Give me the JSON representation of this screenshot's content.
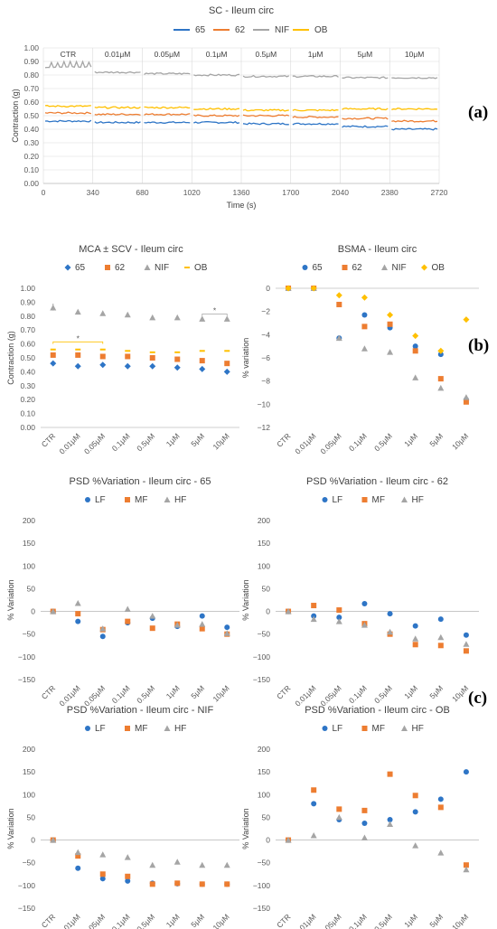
{
  "panels": [
    "(a)",
    "(b)",
    "(c)"
  ],
  "colors": {
    "65": "#2e75c6",
    "62": "#ed7d31",
    "NIF": "#a5a5a5",
    "OB": "#ffc000",
    "LF": "#2e75c6",
    "MF": "#ed7d31",
    "HF": "#a5a5a5"
  },
  "chart_data": [
    {
      "id": "sc",
      "type": "line",
      "title": "SC - Ileum circ",
      "xlabel": "Time (s)",
      "ylabel": "Contraction (g)",
      "xlim": [
        0,
        2720
      ],
      "ylim": [
        0,
        1.0
      ],
      "xticks": [
        0,
        340,
        680,
        1020,
        1360,
        1700,
        2040,
        2380,
        2720
      ],
      "yticks": [
        "0.00",
        "0.10",
        "0.20",
        "0.30",
        "0.40",
        "0.50",
        "0.60",
        "0.70",
        "0.80",
        "0.90",
        "1.00"
      ],
      "segments": [
        "CTR",
        "0.01μM",
        "0.05μM",
        "0.1μM",
        "0.5μM",
        "1μM",
        "5μM",
        "10μM"
      ],
      "series": [
        {
          "name": "65",
          "values": [
            0.46,
            0.45,
            0.45,
            0.45,
            0.44,
            0.44,
            0.42,
            0.4
          ]
        },
        {
          "name": "62",
          "values": [
            0.52,
            0.51,
            0.51,
            0.5,
            0.5,
            0.49,
            0.48,
            0.46
          ]
        },
        {
          "name": "NIF",
          "values": [
            0.86,
            0.82,
            0.81,
            0.8,
            0.79,
            0.79,
            0.78,
            0.78
          ]
        },
        {
          "name": "OB",
          "values": [
            0.57,
            0.56,
            0.56,
            0.55,
            0.54,
            0.54,
            0.55,
            0.55
          ]
        }
      ]
    },
    {
      "id": "mca",
      "type": "scatter",
      "title": "MCA ± SCV - Ileum circ",
      "xlabel": "",
      "ylabel": "Contraction (g)",
      "ylim": [
        0,
        1.0
      ],
      "yticks": [
        "0.00",
        "0.10",
        "0.20",
        "0.30",
        "0.40",
        "0.50",
        "0.60",
        "0.70",
        "0.80",
        "0.90",
        "1.00"
      ],
      "categories": [
        "CTR",
        "0.01μM",
        "0.05μM",
        "0.1μM",
        "0.5μM",
        "1μM",
        "5μM",
        "10μM"
      ],
      "series": [
        {
          "name": "65",
          "values": [
            0.46,
            0.44,
            0.45,
            0.44,
            0.44,
            0.43,
            0.42,
            0.4
          ]
        },
        {
          "name": "62",
          "values": [
            0.52,
            0.52,
            0.51,
            0.51,
            0.5,
            0.49,
            0.48,
            0.46
          ]
        },
        {
          "name": "NIF",
          "values": [
            0.86,
            0.83,
            0.82,
            0.81,
            0.79,
            0.79,
            0.78,
            0.78
          ]
        },
        {
          "name": "OB",
          "values": [
            0.56,
            0.56,
            0.56,
            0.55,
            0.54,
            0.54,
            0.55,
            0.55
          ]
        }
      ],
      "annotations": [
        "*",
        "*"
      ]
    },
    {
      "id": "bsma",
      "type": "scatter",
      "title": "BSMA - Ileum circ",
      "xlabel": "",
      "ylabel": "% variation",
      "ylim": [
        -12,
        0
      ],
      "yticks": [
        "0",
        "−2",
        "−4",
        "−6",
        "−8",
        "−10",
        "−12"
      ],
      "categories": [
        "CTR",
        "0.01μM",
        "0.05μM",
        "0.1μM",
        "0.5μM",
        "1μM",
        "5μM",
        "10μM"
      ],
      "series": [
        {
          "name": "65",
          "values": [
            0,
            0,
            -4.3,
            -2.3,
            -3.4,
            -5.0,
            -5.7,
            -9.6
          ]
        },
        {
          "name": "62",
          "values": [
            0,
            0,
            -1.4,
            -3.3,
            -3.1,
            -5.4,
            -7.8,
            -9.8
          ]
        },
        {
          "name": "NIF",
          "values": [
            0,
            0,
            -4.3,
            -5.2,
            -5.5,
            -7.7,
            -8.6,
            -9.4
          ]
        },
        {
          "name": "OB",
          "values": [
            0,
            0,
            -0.6,
            -0.8,
            -2.3,
            -4.1,
            -5.4,
            -2.7
          ]
        }
      ]
    },
    {
      "id": "psd65",
      "type": "scatter",
      "title": "PSD %Variation - Ileum circ -   65",
      "xlabel": "",
      "ylabel": "% Variation",
      "ylim": [
        -150,
        200
      ],
      "yticks": [
        "200",
        "150",
        "100",
        "50",
        "0",
        "−50",
        "−100",
        "−150"
      ],
      "categories": [
        "CTR",
        "0.01μM",
        "0.05μM",
        "0.1μM",
        "0.5μM",
        "1μM",
        "5μM",
        "10μM"
      ],
      "series": [
        {
          "name": "LF",
          "values": [
            0,
            -22,
            -55,
            -25,
            -15,
            -33,
            -10,
            -35
          ]
        },
        {
          "name": "MF",
          "values": [
            0,
            -5,
            -40,
            -22,
            -37,
            -28,
            -38,
            -50
          ]
        },
        {
          "name": "HF",
          "values": [
            0,
            18,
            -38,
            5,
            -10,
            -30,
            -28,
            -48
          ]
        }
      ]
    },
    {
      "id": "psd62",
      "type": "scatter",
      "title": "PSD %Variation - Ileum circ -   62",
      "xlabel": "",
      "ylabel": "% Variation",
      "ylim": [
        -150,
        200
      ],
      "yticks": [
        "200",
        "150",
        "100",
        "50",
        "0",
        "−50",
        "−100",
        "−150"
      ],
      "categories": [
        "CTR",
        "0.01μM",
        "0.05μM",
        "0.1μM",
        "0.5μM",
        "1μM",
        "5μM",
        "10μM"
      ],
      "series": [
        {
          "name": "LF",
          "values": [
            0,
            -10,
            -13,
            17,
            -5,
            -32,
            -17,
            -52
          ]
        },
        {
          "name": "MF",
          "values": [
            0,
            13,
            3,
            -27,
            -50,
            -73,
            -75,
            -87
          ]
        },
        {
          "name": "HF",
          "values": [
            0,
            -17,
            -22,
            -30,
            -45,
            -60,
            -57,
            -72
          ]
        }
      ]
    },
    {
      "id": "psdnif",
      "type": "scatter",
      "title": "PSD %Variation - Ileum circ - NIF",
      "xlabel": "",
      "ylabel": "% Variation",
      "ylim": [
        -150,
        200
      ],
      "yticks": [
        "200",
        "150",
        "100",
        "50",
        "0",
        "−50",
        "−100",
        "−150"
      ],
      "categories": [
        "CTR",
        "0.01μM",
        "0.05μM",
        "0.1μM",
        "0.5μM",
        "1μM",
        "5μM",
        "10μM"
      ],
      "series": [
        {
          "name": "LF",
          "values": [
            0,
            -62,
            -85,
            -90,
            -95,
            -96,
            -97,
            -97
          ]
        },
        {
          "name": "MF",
          "values": [
            0,
            -35,
            -75,
            -80,
            -97,
            -95,
            -97,
            -97
          ]
        },
        {
          "name": "HF",
          "values": [
            0,
            -27,
            -32,
            -38,
            -55,
            -48,
            -55,
            -55
          ]
        }
      ]
    },
    {
      "id": "psdob",
      "type": "scatter",
      "title": "PSD %Variation - Ileum circ - OB",
      "xlabel": "",
      "ylabel": "% Variation",
      "ylim": [
        -150,
        200
      ],
      "yticks": [
        "200",
        "150",
        "100",
        "50",
        "0",
        "−50",
        "−100",
        "−150"
      ],
      "categories": [
        "CTR",
        "0.01μM",
        "0.05μM",
        "0.1μM",
        "0.5μM",
        "1μM",
        "5μM",
        "10μM"
      ],
      "series": [
        {
          "name": "LF",
          "values": [
            0,
            80,
            45,
            37,
            45,
            62,
            90,
            150
          ]
        },
        {
          "name": "MF",
          "values": [
            0,
            110,
            68,
            65,
            145,
            98,
            72,
            -55
          ]
        },
        {
          "name": "HF",
          "values": [
            0,
            10,
            50,
            5,
            35,
            -12,
            -28,
            -65
          ]
        }
      ]
    }
  ]
}
